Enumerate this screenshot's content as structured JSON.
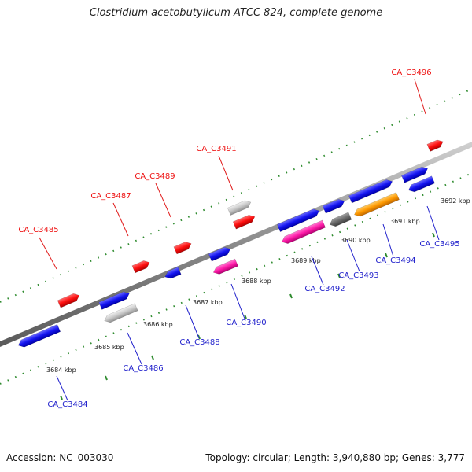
{
  "title": "Clostridium acetobutylicum ATCC 824, complete genome",
  "accession": "Accession: NC_003030",
  "summary": "Topology: circular; Length: 3,940,880 bp; Genes: 3,777",
  "colors": {
    "backbone": "#8a8a8a",
    "forward_label": "#e11d1d",
    "reverse_label": "#2222cc",
    "ticks": "#2e8b2e"
  },
  "ticks": [
    {
      "label": "3684 kbp"
    },
    {
      "label": "3685 kbp"
    },
    {
      "label": "3686 kbp"
    },
    {
      "label": "3687 kbp"
    },
    {
      "label": "3688 kbp"
    },
    {
      "label": "3689 kbp"
    },
    {
      "label": "3690 kbp"
    },
    {
      "label": "3691 kbp"
    },
    {
      "label": "3692 kbp"
    }
  ],
  "forward_genes": [
    {
      "label": "CA_C3485",
      "color": "red"
    },
    {
      "label": "CA_C3487",
      "color": "red"
    },
    {
      "label": "CA_C3489",
      "color": "red"
    },
    {
      "label": "CA_C3491",
      "color": "red"
    },
    {
      "label": "CA_C3496",
      "color": "red"
    }
  ],
  "reverse_genes": [
    {
      "label": "CA_C3484",
      "color": "blue"
    },
    {
      "label": "CA_C3486",
      "color": "gray"
    },
    {
      "label": "CA_C3488",
      "color": "blue"
    },
    {
      "label": "CA_C3490",
      "color": "magenta"
    },
    {
      "label": "CA_C3492",
      "color": "magenta"
    },
    {
      "label": "CA_C3493",
      "color": "darkgray"
    },
    {
      "label": "CA_C3494",
      "color": "orange"
    },
    {
      "label": "CA_C3495",
      "color": "blue"
    }
  ]
}
